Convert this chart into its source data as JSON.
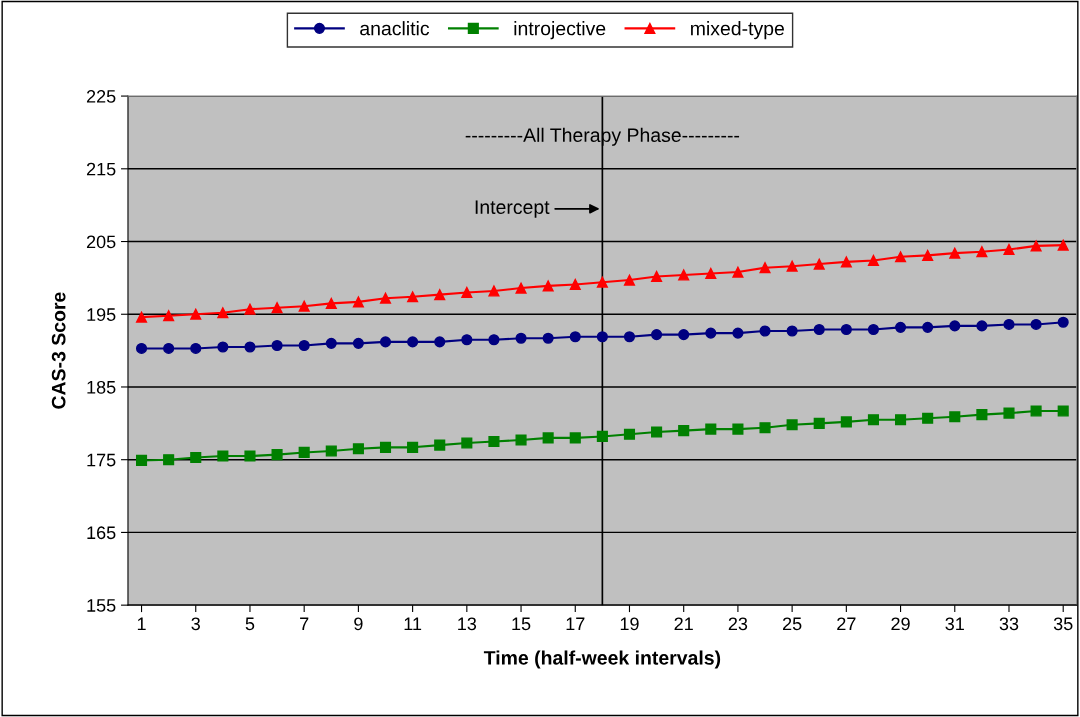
{
  "chart_data": {
    "type": "line",
    "xlabel": "Time (half-week intervals)",
    "ylabel": "CAS-3 Score",
    "x": [
      1,
      2,
      3,
      4,
      5,
      6,
      7,
      8,
      9,
      10,
      11,
      12,
      13,
      14,
      15,
      16,
      17,
      18,
      19,
      20,
      21,
      22,
      23,
      24,
      25,
      26,
      27,
      28,
      29,
      30,
      31,
      32,
      33,
      34,
      35
    ],
    "series": [
      {
        "name": "anaclitic",
        "color": "#000080",
        "marker": "circle",
        "values": [
          190.3,
          190.3,
          190.3,
          190.5,
          190.5,
          190.7,
          190.7,
          191.0,
          191.0,
          191.2,
          191.2,
          191.2,
          191.5,
          191.5,
          191.7,
          191.7,
          191.9,
          191.9,
          191.9,
          192.2,
          192.2,
          192.4,
          192.4,
          192.7,
          192.7,
          192.9,
          192.9,
          192.9,
          193.2,
          193.2,
          193.4,
          193.4,
          193.6,
          193.6,
          193.9
        ]
      },
      {
        "name": "introjective",
        "color": "#008000",
        "marker": "square",
        "values": [
          174.9,
          175.0,
          175.3,
          175.5,
          175.5,
          175.7,
          176.0,
          176.2,
          176.5,
          176.7,
          176.7,
          177.0,
          177.3,
          177.5,
          177.7,
          178.0,
          178.0,
          178.2,
          178.5,
          178.8,
          179.0,
          179.2,
          179.2,
          179.4,
          179.8,
          180.0,
          180.2,
          180.5,
          180.5,
          180.7,
          180.9,
          181.2,
          181.4,
          181.7,
          181.7
        ]
      },
      {
        "name": "mixed-type",
        "color": "#ff0000",
        "marker": "triangle",
        "values": [
          194.6,
          194.8,
          195.0,
          195.2,
          195.7,
          195.9,
          196.1,
          196.5,
          196.7,
          197.2,
          197.4,
          197.7,
          198.0,
          198.2,
          198.6,
          198.9,
          199.1,
          199.4,
          199.7,
          200.2,
          200.4,
          200.6,
          200.8,
          201.4,
          201.6,
          201.9,
          202.2,
          202.4,
          202.9,
          203.1,
          203.4,
          203.6,
          203.9,
          204.4,
          204.5
        ]
      }
    ],
    "xlim": [
      0.5,
      35.5
    ],
    "xticks": [
      1,
      3,
      5,
      7,
      9,
      11,
      13,
      15,
      17,
      19,
      21,
      23,
      25,
      27,
      29,
      31,
      33,
      35
    ],
    "ylim": [
      155,
      225
    ],
    "yticks": [
      155,
      165,
      175,
      185,
      195,
      205,
      215,
      225
    ],
    "grid": "y",
    "legend": "top",
    "line_style": "solid",
    "ref_lines": [
      {
        "axis": "x",
        "value": 18,
        "color": "#000000"
      }
    ],
    "annotations": [
      "---------All Therapy Phase---------",
      {
        "text": "Intercept",
        "x": 18,
        "y": 209.5
      }
    ]
  }
}
